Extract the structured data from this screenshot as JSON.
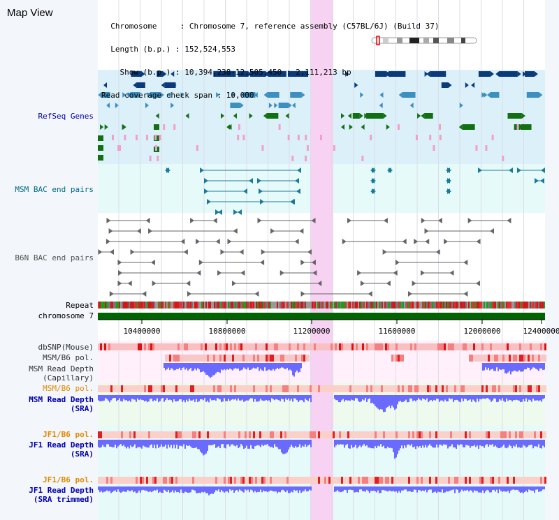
{
  "header": {
    "view_title": "Map View",
    "info_lines": [
      "  Chromosome     : Chromosome 7, reference assembly (C57BL/6J) (Build 37)",
      "  Length (b.p.) : 152,524,553",
      "    Show (b.p.) : 10,394,238-12,505,450 : 2,111,213 bp",
      "Read coverage check span : 10,000"
    ]
  },
  "tracks": {
    "refseq": "RefSeq Genes",
    "msm_bac": "MSM BAC end pairs",
    "b6n_bac": "B6N BAC end pairs",
    "repeat": "Repeat",
    "chromosome": "chromosome 7",
    "dbsnp": "dbSNP(Mouse)",
    "msm_b6_pol_1": "MSM/B6 pol.",
    "msm_read_depth_cap_1": "MSM Read Depth",
    "msm_read_depth_cap_2": "(Capillary)",
    "msm_b6_pol_2": "MSM/B6 pol.",
    "msm_read_depth_sra_1": "MSM Read Depth",
    "msm_read_depth_sra_2": "(SRA)",
    "jf1_b6_pol_1": "JF1/B6 pol.",
    "jf1_read_depth_sra_1": "JF1 Read Depth",
    "jf1_read_depth_sra_2": "(SRA)",
    "jf1_b6_pol_2": "JF1/B6 pol.",
    "jf1_read_depth_trim_1": "JF1 Read Depth",
    "jf1_read_depth_trim_2": "(SRA trimmed)"
  },
  "axis": {
    "ticks": [
      "10400000",
      "10800000",
      "11200000",
      "11600000",
      "12000000",
      "12400000"
    ]
  },
  "colors": {
    "refseq_label": "#0000aa",
    "msm_bac_label": "#006b84",
    "b6n_bac_label": "#555555",
    "pol_label": "#e08a00",
    "depth_label": "#0000aa",
    "highlight": "#f7d2f2",
    "gene_dark": "#0a3a7a",
    "gene_mid": "#3d8fc0",
    "gene_green": "#127012",
    "gene_pink": "#f2a0c8",
    "chromosome_bar": "#006400",
    "depth_fill": "#6a6aff"
  }
}
